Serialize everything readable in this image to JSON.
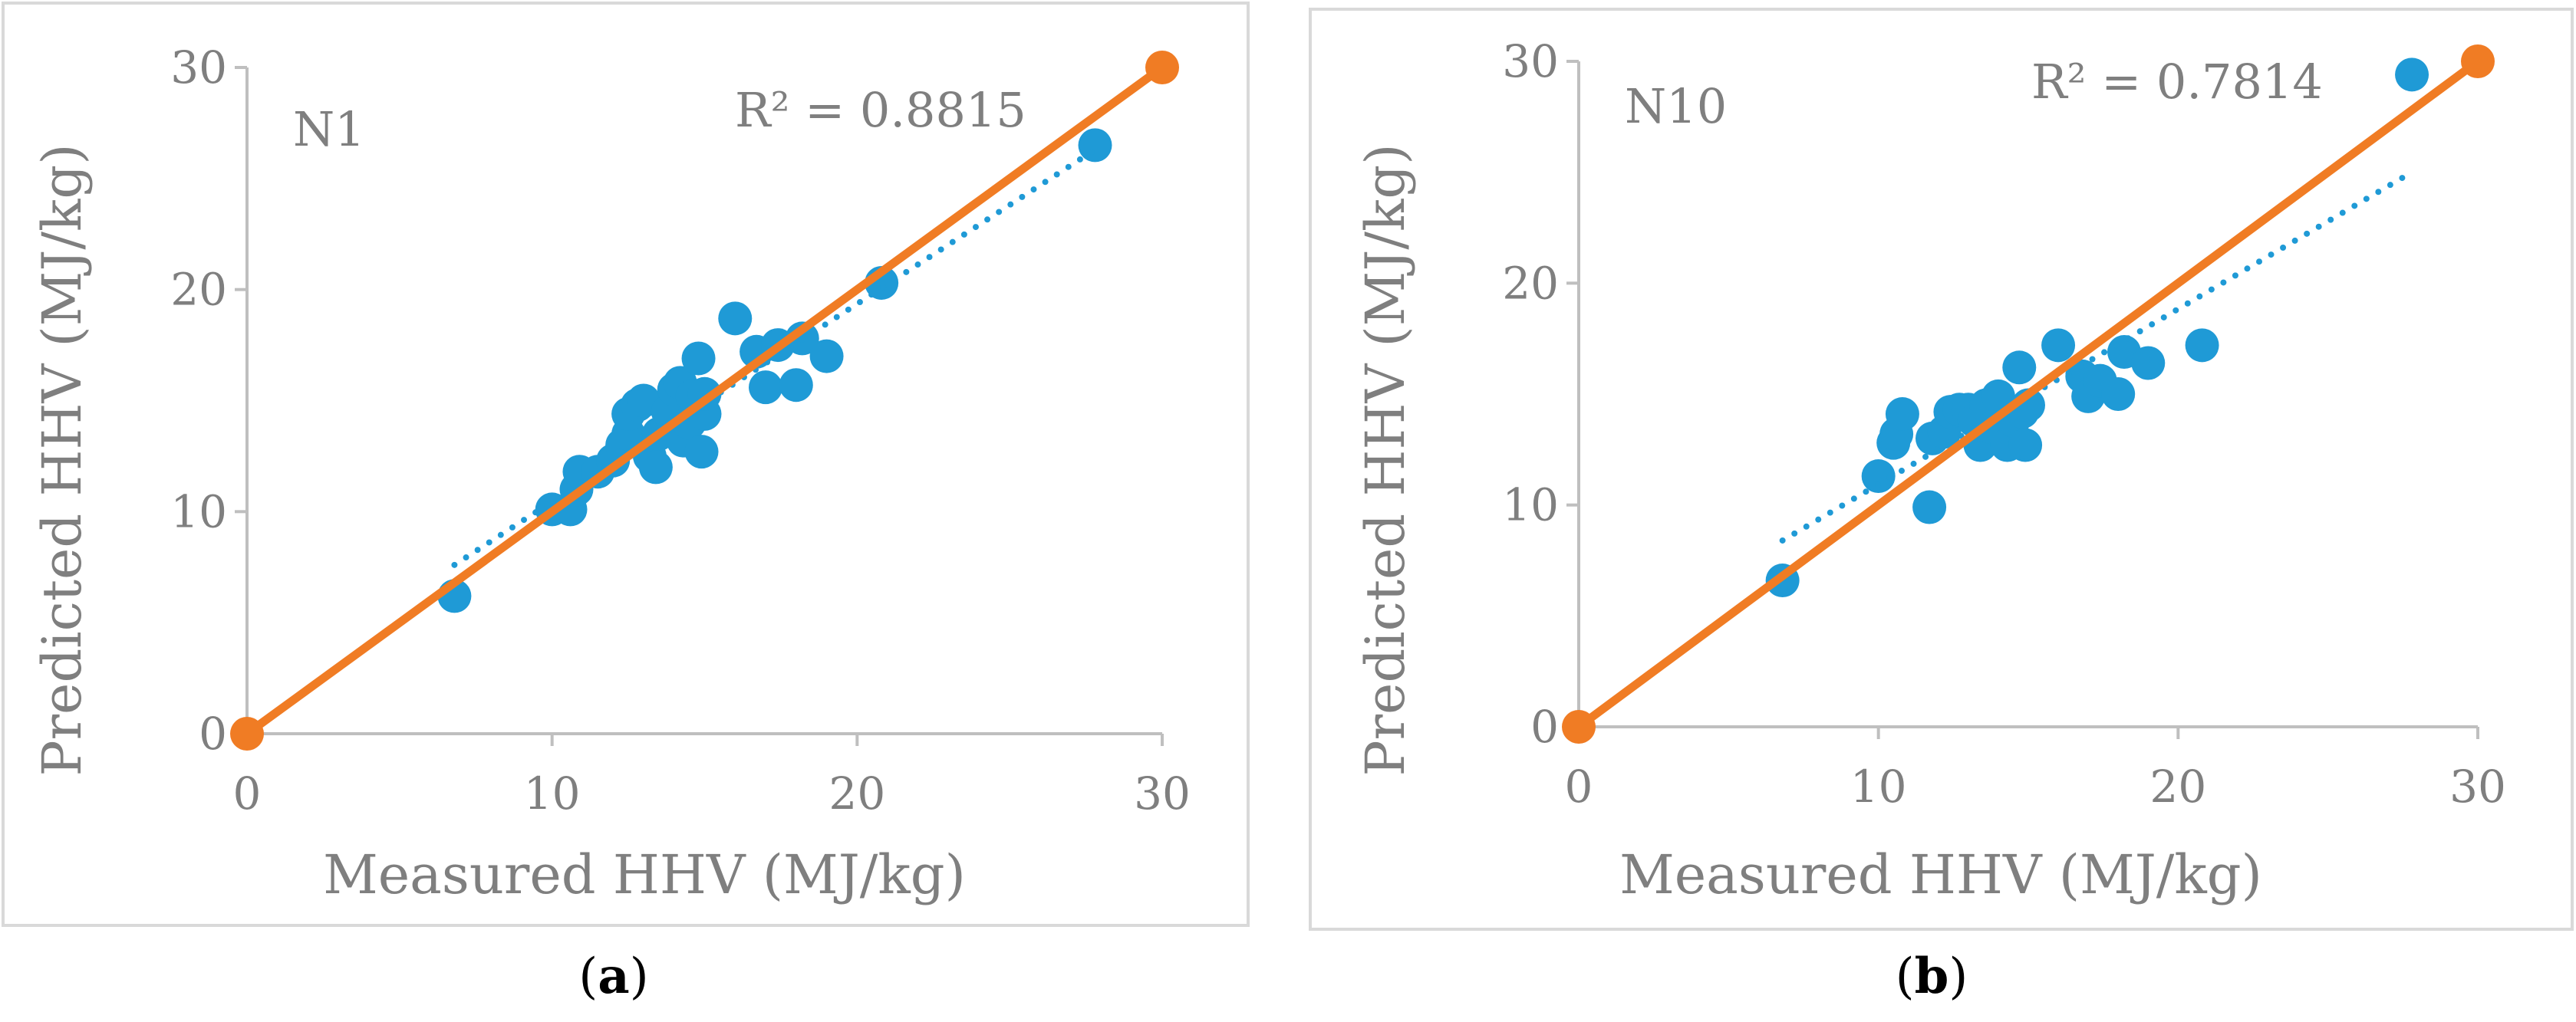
{
  "figure": {
    "panels": [
      {
        "caption_open": "(",
        "caption_letter": "a",
        "caption_close": ")"
      },
      {
        "caption_open": "(",
        "caption_letter": "b",
        "caption_close": ")"
      }
    ]
  },
  "colors": {
    "measured_points": "#1f9ad6",
    "ideal_line": "#f07c24",
    "axis": "#bfbfbf",
    "text": "#7f7f7f",
    "border": "#d9d9d9"
  },
  "chart_data": [
    {
      "type": "scatter",
      "panel_label": "N1",
      "r_squared": "R² = 0.8815",
      "xlabel": "Measured HHV (MJ/kg)",
      "ylabel": "Predicted HHV (MJ/kg)",
      "xlim": [
        0,
        30
      ],
      "ylim": [
        0,
        30
      ],
      "xticks": [
        0,
        10,
        20,
        30
      ],
      "yticks": [
        0,
        10,
        20,
        30
      ],
      "xtick_labels": [
        "0",
        "10",
        "20",
        "30"
      ],
      "ytick_labels": [
        "0",
        "10",
        "20",
        "30"
      ],
      "series": [
        {
          "name": "Predicted vs measured",
          "kind": "scatter",
          "points": [
            [
              6.8,
              6.2
            ],
            [
              10.0,
              10.1
            ],
            [
              10.6,
              10.1
            ],
            [
              10.8,
              11.0
            ],
            [
              10.9,
              11.8
            ],
            [
              11.5,
              11.8
            ],
            [
              12.0,
              12.3
            ],
            [
              12.3,
              13.0
            ],
            [
              12.5,
              13.5
            ],
            [
              12.5,
              14.4
            ],
            [
              12.8,
              14.8
            ],
            [
              13.0,
              15.0
            ],
            [
              13.2,
              12.5
            ],
            [
              13.4,
              12.0
            ],
            [
              13.5,
              13.5
            ],
            [
              13.8,
              14.5
            ],
            [
              14.0,
              15.5
            ],
            [
              14.2,
              15.8
            ],
            [
              14.3,
              13.2
            ],
            [
              14.5,
              14.0
            ],
            [
              14.6,
              15.2
            ],
            [
              14.8,
              16.9
            ],
            [
              14.9,
              12.7
            ],
            [
              15.0,
              14.4
            ],
            [
              15.0,
              15.3
            ],
            [
              16.0,
              18.7
            ],
            [
              16.7,
              17.2
            ],
            [
              17.0,
              15.6
            ],
            [
              17.4,
              17.5
            ],
            [
              18.0,
              15.7
            ],
            [
              18.2,
              17.8
            ],
            [
              19.0,
              17.0
            ],
            [
              20.8,
              20.3
            ],
            [
              27.8,
              26.5
            ]
          ]
        },
        {
          "name": "Linear trendline",
          "kind": "trendline",
          "x_range": [
            6.8,
            27.8
          ],
          "y_range": [
            7.6,
            26.3
          ]
        },
        {
          "name": "Ideal line (y = x)",
          "kind": "line",
          "points": [
            [
              0,
              0
            ],
            [
              30,
              30
            ]
          ]
        }
      ]
    },
    {
      "type": "scatter",
      "panel_label": "N10",
      "r_squared": "R² = 0.7814",
      "xlabel": "Measured HHV (MJ/kg)",
      "ylabel": "Predicted HHV (MJ/kg)",
      "xlim": [
        0,
        30
      ],
      "ylim": [
        0,
        30
      ],
      "xticks": [
        0,
        10,
        20,
        30
      ],
      "yticks": [
        0,
        10,
        20,
        30
      ],
      "xtick_labels": [
        "0",
        "10",
        "20",
        "30"
      ],
      "ytick_labels": [
        "0",
        "10",
        "20",
        "30"
      ],
      "series": [
        {
          "name": "Predicted vs measured",
          "kind": "scatter",
          "points": [
            [
              6.8,
              6.6
            ],
            [
              10.0,
              11.3
            ],
            [
              10.5,
              12.8
            ],
            [
              10.6,
              13.2
            ],
            [
              10.8,
              14.1
            ],
            [
              11.7,
              9.9
            ],
            [
              11.8,
              13.0
            ],
            [
              12.2,
              13.3
            ],
            [
              12.4,
              14.2
            ],
            [
              12.7,
              14.3
            ],
            [
              13.0,
              14.3
            ],
            [
              13.2,
              13.8
            ],
            [
              13.4,
              12.7
            ],
            [
              13.6,
              14.5
            ],
            [
              13.8,
              13.5
            ],
            [
              14.0,
              14.9
            ],
            [
              14.3,
              12.7
            ],
            [
              14.5,
              13.8
            ],
            [
              14.7,
              16.2
            ],
            [
              14.8,
              14.2
            ],
            [
              14.9,
              12.7
            ],
            [
              15.0,
              14.5
            ],
            [
              16.0,
              17.2
            ],
            [
              16.8,
              15.8
            ],
            [
              17.0,
              14.9
            ],
            [
              17.4,
              15.6
            ],
            [
              18.0,
              15.0
            ],
            [
              18.2,
              16.9
            ],
            [
              19.0,
              16.4
            ],
            [
              20.8,
              17.2
            ],
            [
              27.8,
              29.4
            ]
          ]
        },
        {
          "name": "Linear trendline",
          "kind": "trendline",
          "x_range": [
            6.8,
            27.8
          ],
          "y_range": [
            8.4,
            25.0
          ]
        },
        {
          "name": "Ideal line (y = x)",
          "kind": "line",
          "points": [
            [
              0,
              0
            ],
            [
              30,
              30
            ]
          ]
        }
      ]
    }
  ]
}
